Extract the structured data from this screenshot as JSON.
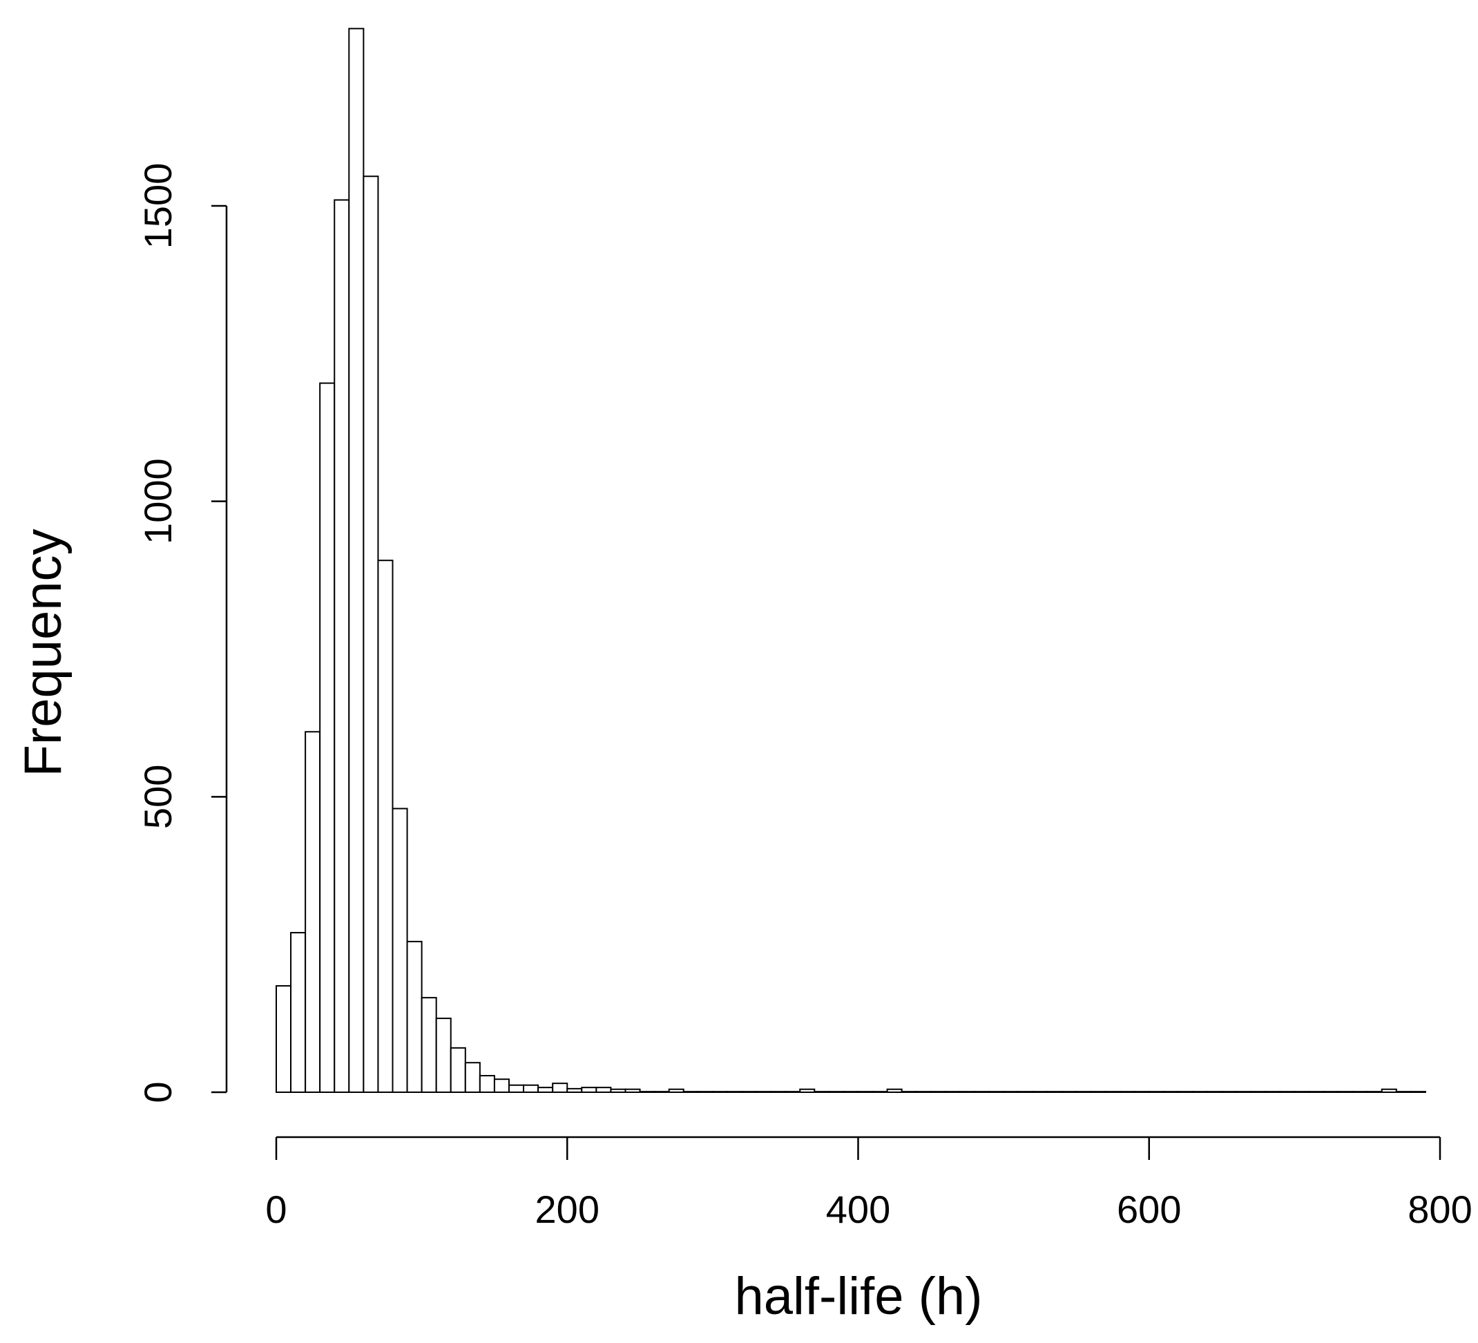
{
  "chart_data": {
    "type": "bar",
    "subtype": "histogram",
    "title": "",
    "xlabel": "half-life (h)",
    "ylabel": "Frequency",
    "bin_width": 10,
    "bin_start": 0,
    "xlim": [
      0,
      800
    ],
    "ylim": [
      0,
      1500
    ],
    "x_ticks": [
      0,
      200,
      400,
      600,
      800
    ],
    "y_ticks": [
      0,
      500,
      1000,
      1500
    ],
    "grid": false,
    "values": [
      180,
      270,
      610,
      1200,
      1510,
      1800,
      1550,
      900,
      480,
      255,
      160,
      125,
      75,
      50,
      28,
      22,
      12,
      12,
      8,
      15,
      6,
      8,
      8,
      5,
      5,
      1,
      1,
      5,
      1,
      1,
      1,
      1,
      1,
      1,
      1,
      1,
      5,
      1,
      1,
      1,
      1,
      1,
      5,
      1,
      1,
      1,
      1,
      1,
      1,
      1,
      1,
      1,
      1,
      1,
      1,
      1,
      1,
      1,
      1,
      1,
      1,
      1,
      1,
      1,
      1,
      1,
      1,
      1,
      1,
      1,
      1,
      1,
      1,
      1,
      1,
      1,
      5,
      1,
      1
    ]
  }
}
